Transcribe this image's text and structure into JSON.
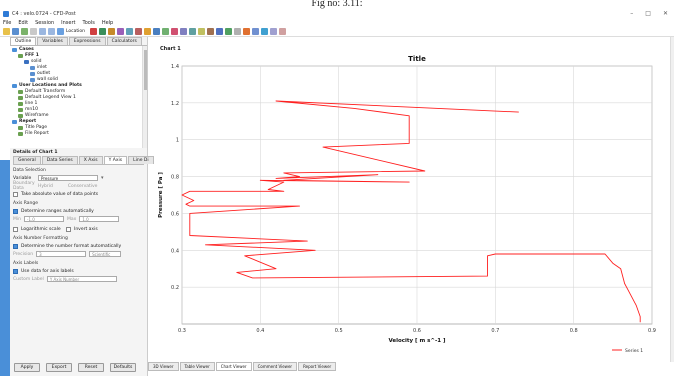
{
  "caption": "Fig no: 3.11:",
  "window": {
    "title": "C4 : velo.0724 - CFD-Post",
    "buttons": [
      "–",
      "□",
      "✕"
    ]
  },
  "menu": [
    "File",
    "Edit",
    "Session",
    "Insert",
    "Tools",
    "Help"
  ],
  "toolbar": {
    "location_label": "Location"
  },
  "tabs": [
    "Outline",
    "Variables",
    "Expressions",
    "Calculators"
  ],
  "tree": {
    "items": [
      {
        "label": "Cases",
        "level": 0,
        "bold": true
      },
      {
        "label": "FFF 1",
        "level": 1,
        "bold": true
      },
      {
        "label": "solid",
        "level": 2
      },
      {
        "label": "inlet",
        "level": 3
      },
      {
        "label": "outlet",
        "level": 3
      },
      {
        "label": "wall solid",
        "level": 3
      },
      {
        "label": "User Locations and Plots",
        "level": 0,
        "bold": true
      },
      {
        "label": "Default Transform",
        "level": 1
      },
      {
        "label": "Default Legend View 1",
        "level": 1
      },
      {
        "label": "line 1",
        "level": 1
      },
      {
        "label": "mn10",
        "level": 1
      },
      {
        "label": "Wireframe",
        "level": 1
      },
      {
        "label": "Report",
        "level": 0,
        "bold": true
      },
      {
        "label": "Title Page",
        "level": 1
      },
      {
        "label": "File Report",
        "level": 1
      }
    ]
  },
  "details": {
    "header": "Details of Chart 1",
    "tabs": [
      "General",
      "Data Series",
      "X Axis",
      "Y Axis",
      "Line Di"
    ],
    "data_selection": "Data Selection",
    "variable_label": "Variable",
    "variable_value": "Pressure",
    "boundary_label": "Boundary Data",
    "hybrid": "Hybrid",
    "conservative": "Conservative",
    "take_abs": "Take absolute value of data points",
    "axis_range": "Axis Range",
    "determine_ranges": "Determine ranges automatically",
    "min_label": "Min",
    "min_value": "-1.0",
    "max_label": "Max",
    "max_value": "1.0",
    "log_scale": "Logarithmic scale",
    "invert_axis": "Invert axis",
    "number_format": "Axis Number Formatting",
    "determine_format": "Determine the number format automatically",
    "precision_label": "Precision",
    "precision_value": "3",
    "scientific": "Scientific",
    "axis_labels": "Axis Labels",
    "use_data": "Use data for axis labels",
    "custom_label": "Custom Label",
    "custom_placeholder": "Y Axis Number"
  },
  "buttons": {
    "apply": "Apply",
    "export": "Export",
    "reset": "Reset",
    "defaults": "Defaults"
  },
  "bottom_tabs": [
    "3D Viewer",
    "Table Viewer",
    "Chart Viewer",
    "Comment Viewer",
    "Report Viewer"
  ],
  "chart_name": "Chart 1",
  "chart_data": {
    "type": "line",
    "title": "Title",
    "xlabel": "Velocity [ m s^-1 ]",
    "ylabel": "Pressure [ Pa ]",
    "xlim": [
      0.3,
      0.9
    ],
    "ylim": [
      0.0,
      1.4
    ],
    "xticks": [
      "0.3",
      "0.4",
      "0.5",
      "0.6",
      "0.7",
      "0.8",
      "0.9"
    ],
    "yticks": [
      "0.2",
      "0.4",
      "0.6",
      "0.8",
      "1",
      "1.2",
      "1.4"
    ],
    "series": [
      {
        "name": "Series 1",
        "color": "#ff2020",
        "x": [
          0.73,
          0.42,
          0.52,
          0.59,
          0.59,
          0.48,
          0.61,
          0.43,
          0.45,
          0.42,
          0.55,
          0.43,
          0.59,
          0.4,
          0.43,
          0.41,
          0.43,
          0.31,
          0.3,
          0.315,
          0.305,
          0.31,
          0.45,
          0.31,
          0.31,
          0.46,
          0.33,
          0.47,
          0.38,
          0.42,
          0.37,
          0.39,
          0.69,
          0.69,
          0.7,
          0.71,
          0.84,
          0.85,
          0.86,
          0.865,
          0.87,
          0.875,
          0.88,
          0.885,
          0.885
        ],
        "y": [
          1.15,
          1.21,
          1.17,
          1.13,
          0.98,
          0.96,
          0.83,
          0.82,
          0.8,
          0.79,
          0.81,
          0.78,
          0.77,
          0.78,
          0.77,
          0.73,
          0.72,
          0.72,
          0.7,
          0.67,
          0.65,
          0.64,
          0.64,
          0.6,
          0.48,
          0.45,
          0.43,
          0.4,
          0.37,
          0.3,
          0.28,
          0.25,
          0.26,
          0.37,
          0.38,
          0.38,
          0.38,
          0.33,
          0.3,
          0.22,
          0.18,
          0.14,
          0.1,
          0.04,
          0.01
        ]
      }
    ],
    "legend": "bottom-right",
    "grid": true
  }
}
